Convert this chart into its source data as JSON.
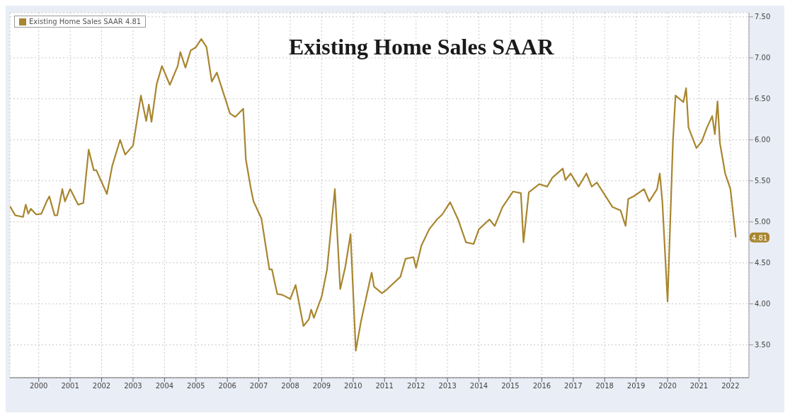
{
  "chart_data": {
    "type": "line",
    "title": "Existing Home Sales SAAR",
    "x": [
      "1999-08",
      "1999-10",
      "2000-01",
      "2000-02",
      "2000-03",
      "2000-04",
      "2000-06",
      "2000-08",
      "2000-10",
      "2000-11",
      "2001-01",
      "2001-02",
      "2001-04",
      "2001-05",
      "2001-07",
      "2001-10",
      "2001-12",
      "2002-02",
      "2002-04",
      "2002-05",
      "2002-09",
      "2002-11",
      "2003-02",
      "2003-04",
      "2003-07",
      "2003-10",
      "2003-12",
      "2004-01",
      "2004-02",
      "2004-04",
      "2004-06",
      "2004-09",
      "2004-12",
      "2005-01",
      "2005-03",
      "2005-05",
      "2005-07",
      "2005-09",
      "2005-11",
      "2006-01",
      "2006-03",
      "2006-08",
      "2006-10",
      "2007-01",
      "2007-02",
      "2007-04",
      "2007-05",
      "2007-08",
      "2007-11",
      "2007-12",
      "2008-02",
      "2008-04",
      "2008-07",
      "2008-09",
      "2008-12",
      "2009-02",
      "2009-03",
      "2009-04",
      "2009-07",
      "2009-09",
      "2009-12",
      "2010-02",
      "2010-04",
      "2010-06",
      "2010-08",
      "2010-10",
      "2011-02",
      "2011-03",
      "2011-06",
      "2011-08",
      "2012-01",
      "2012-03",
      "2012-06",
      "2012-07",
      "2012-09",
      "2012-12",
      "2013-03",
      "2013-05",
      "2013-08",
      "2013-11",
      "2014-02",
      "2014-05",
      "2014-07",
      "2014-11",
      "2015-01",
      "2015-04",
      "2015-08",
      "2015-11",
      "2015-12",
      "2016-02",
      "2016-06",
      "2016-09",
      "2016-11",
      "2017-03",
      "2017-04",
      "2017-06",
      "2017-09",
      "2017-12",
      "2018-02",
      "2018-04",
      "2018-06",
      "2018-10",
      "2019-01",
      "2019-03",
      "2019-04",
      "2019-06",
      "2019-10",
      "2019-12",
      "2020-03",
      "2020-04",
      "2020-05",
      "2020-07",
      "2020-09",
      "2020-10",
      "2021-01",
      "2021-02",
      "2021-03",
      "2021-06",
      "2021-08",
      "2021-10",
      "2021-12",
      "2022-01",
      "2022-02",
      "2022-03",
      "2022-05",
      "2022-07",
      "2022-09"
    ],
    "series": [
      {
        "name": "Existing Home Sales SAAR 4.81",
        "color": "#a8862f",
        "values": [
          5.19,
          5.08,
          5.06,
          5.21,
          5.1,
          5.16,
          5.09,
          5.1,
          5.25,
          5.31,
          5.08,
          5.08,
          5.4,
          5.25,
          5.4,
          5.21,
          5.23,
          5.88,
          5.63,
          5.63,
          5.34,
          5.68,
          6.0,
          5.82,
          5.93,
          6.54,
          6.23,
          6.43,
          6.22,
          6.68,
          6.9,
          6.67,
          6.9,
          7.07,
          6.88,
          7.09,
          7.13,
          7.23,
          7.13,
          6.71,
          6.82,
          6.32,
          6.28,
          6.38,
          5.76,
          5.4,
          5.25,
          5.04,
          4.42,
          4.42,
          4.12,
          4.11,
          4.06,
          4.23,
          3.73,
          3.81,
          3.93,
          3.83,
          4.09,
          4.42,
          5.4,
          4.18,
          4.45,
          4.85,
          3.43,
          3.79,
          4.38,
          4.21,
          4.13,
          4.18,
          4.33,
          4.55,
          4.57,
          4.44,
          4.71,
          4.91,
          5.03,
          5.09,
          5.24,
          5.03,
          4.75,
          4.73,
          4.91,
          5.03,
          4.95,
          5.18,
          5.37,
          5.35,
          4.75,
          5.36,
          5.46,
          5.43,
          5.54,
          5.65,
          5.51,
          5.59,
          5.43,
          5.59,
          5.43,
          5.48,
          5.38,
          5.18,
          5.14,
          4.95,
          5.28,
          5.31,
          5.4,
          5.25,
          5.4,
          5.59,
          5.25,
          4.03,
          5.98,
          6.54,
          6.46,
          6.63,
          6.15,
          5.9,
          5.98,
          6.15,
          6.29,
          6.07,
          6.47,
          5.96,
          5.59,
          5.4,
          4.81
        ]
      }
    ],
    "xlim": [
      "1999-08",
      "2023-02"
    ],
    "xticks": [
      {
        "value": "2000-07",
        "label": "2000"
      },
      {
        "value": "2001-07",
        "label": "2001"
      },
      {
        "value": "2002-07",
        "label": "2002"
      },
      {
        "value": "2003-07",
        "label": "2003"
      },
      {
        "value": "2004-07",
        "label": "2004"
      },
      {
        "value": "2005-07",
        "label": "2005"
      },
      {
        "value": "2006-07",
        "label": "2006"
      },
      {
        "value": "2007-07",
        "label": "2007"
      },
      {
        "value": "2008-07",
        "label": "2008"
      },
      {
        "value": "2009-07",
        "label": "2009"
      },
      {
        "value": "2010-07",
        "label": "2010"
      },
      {
        "value": "2011-07",
        "label": "2011"
      },
      {
        "value": "2012-07",
        "label": "2012"
      },
      {
        "value": "2013-07",
        "label": "2013"
      },
      {
        "value": "2014-07",
        "label": "2014"
      },
      {
        "value": "2015-07",
        "label": "2015"
      },
      {
        "value": "2016-07",
        "label": "2016"
      },
      {
        "value": "2017-07",
        "label": "2017"
      },
      {
        "value": "2018-07",
        "label": "2018"
      },
      {
        "value": "2019-07",
        "label": "2019"
      },
      {
        "value": "2020-07",
        "label": "2020"
      },
      {
        "value": "2021-07",
        "label": "2021"
      },
      {
        "value": "2022-07",
        "label": "2022"
      }
    ],
    "ylim": [
      3.1,
      7.55
    ],
    "yticks": [
      {
        "value": 3.5,
        "label": "3.50"
      },
      {
        "value": 4,
        "label": "4.00"
      },
      {
        "value": 4.5,
        "label": "4.50"
      },
      {
        "value": 5,
        "label": "5.00"
      },
      {
        "value": 5.5,
        "label": "5.50"
      },
      {
        "value": 6,
        "label": "6.00"
      },
      {
        "value": 6.5,
        "label": "6.50"
      },
      {
        "value": 7,
        "label": "7.00"
      },
      {
        "value": 7.5,
        "label": "7.50"
      }
    ],
    "annotations": [
      {
        "text": "4.81",
        "x": "2022-09",
        "y": 4.81
      }
    ],
    "grid": true,
    "legend": "top left",
    "marker": "none",
    "line_style": "solid"
  }
}
